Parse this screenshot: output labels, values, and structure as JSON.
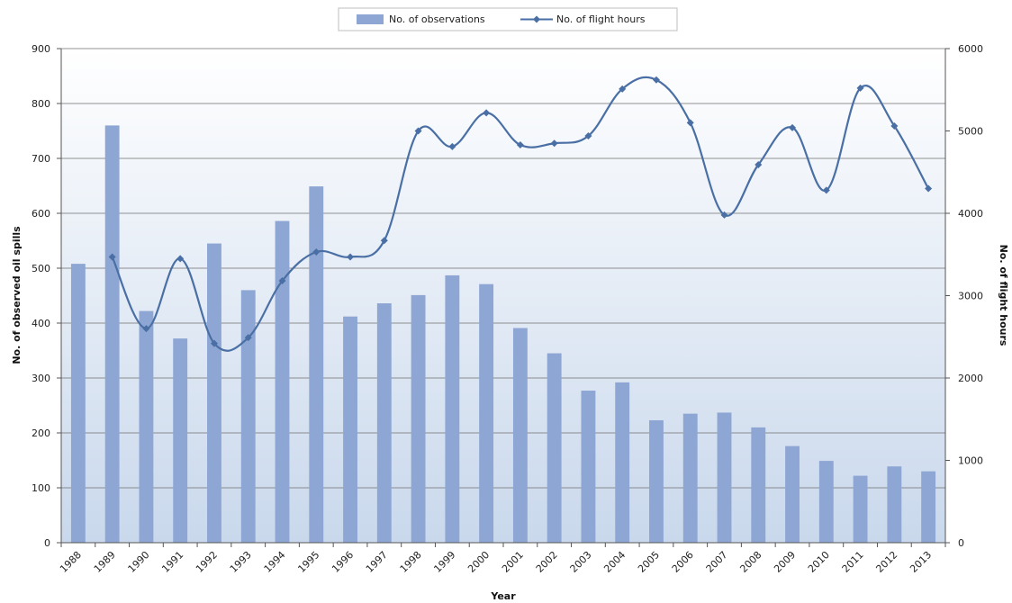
{
  "chart_data": {
    "type": "bar",
    "categories": [
      "1988",
      "1989",
      "1990",
      "1991",
      "1992",
      "1993",
      "1994",
      "1995",
      "1996",
      "1997",
      "1998",
      "1999",
      "2000",
      "2001",
      "2002",
      "2003",
      "2004",
      "2005",
      "2006",
      "2007",
      "2008",
      "2009",
      "2010",
      "2011",
      "2012",
      "2013"
    ],
    "series": [
      {
        "name": "No. of observations",
        "type": "bar",
        "axis": "left",
        "color": "#8EA6D3",
        "values": [
          508,
          760,
          422,
          372,
          545,
          460,
          586,
          649,
          412,
          436,
          451,
          487,
          471,
          391,
          345,
          277,
          292,
          223,
          235,
          237,
          210,
          176,
          149,
          122,
          139,
          130
        ]
      },
      {
        "name": "No. of flight hours",
        "type": "line",
        "axis": "right",
        "color": "#4A6FA5",
        "marker": "diamond",
        "values": [
          null,
          3470,
          2600,
          3450,
          2420,
          2490,
          3180,
          3530,
          3470,
          3670,
          5000,
          4810,
          5220,
          4830,
          4850,
          4940,
          5510,
          5620,
          5100,
          3980,
          4590,
          5040,
          4280,
          5520,
          5060,
          4300
        ]
      }
    ],
    "xlabel": "Year",
    "ylabel": "No. of observed oil spills",
    "y2label": "No. of flight hours",
    "ylim": [
      0,
      900
    ],
    "y2lim": [
      0,
      6000
    ],
    "yticks": [
      "0",
      "100",
      "200",
      "300",
      "400",
      "500",
      "600",
      "700",
      "800",
      "900"
    ],
    "y2ticks": [
      "0",
      "1000",
      "2000",
      "3000",
      "4000",
      "5000",
      "6000"
    ],
    "grid": true,
    "legend": "top-center"
  }
}
